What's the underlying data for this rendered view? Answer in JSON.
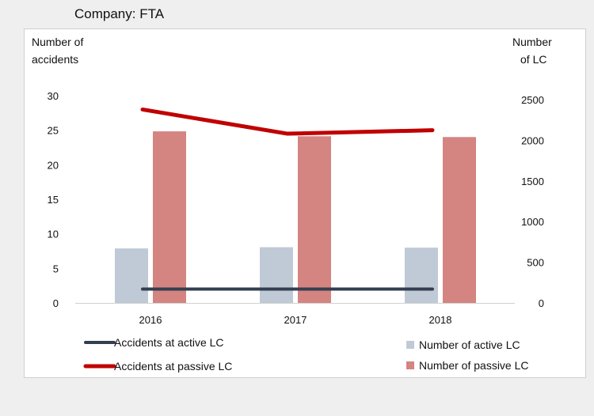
{
  "page": {
    "title": "Company: FTA"
  },
  "chart_data": {
    "type": "bar+line",
    "categories": [
      "2016",
      "2017",
      "2018"
    ],
    "y_left": {
      "label_lines": [
        "Number of",
        "accidents"
      ],
      "range": [
        0,
        30
      ],
      "ticks": [
        "0",
        "5",
        "10",
        "15",
        "20",
        "25",
        "30"
      ]
    },
    "y_right": {
      "label_lines": [
        "Number",
        "of LC"
      ],
      "range": [
        0,
        2500
      ],
      "ticks": [
        "0",
        "500",
        "1000",
        "1500",
        "2000",
        "2500"
      ]
    },
    "bars": [
      {
        "name": "Number of active LC",
        "axis": "right",
        "color": "#bfcad6",
        "values": [
          670,
          685,
          680
        ]
      },
      {
        "name": "Number of passive LC",
        "axis": "right",
        "color": "#d48481",
        "values": [
          2110,
          2050,
          2040
        ]
      }
    ],
    "lines": [
      {
        "name": "Accidents at active LC",
        "axis": "left",
        "color": "#333f50",
        "values": [
          2,
          2,
          2
        ]
      },
      {
        "name": "Accidents at passive LC",
        "axis": "left",
        "color": "#c00000",
        "values": [
          28,
          24.5,
          25
        ]
      }
    ],
    "grid": false,
    "legend_position": "bottom"
  }
}
